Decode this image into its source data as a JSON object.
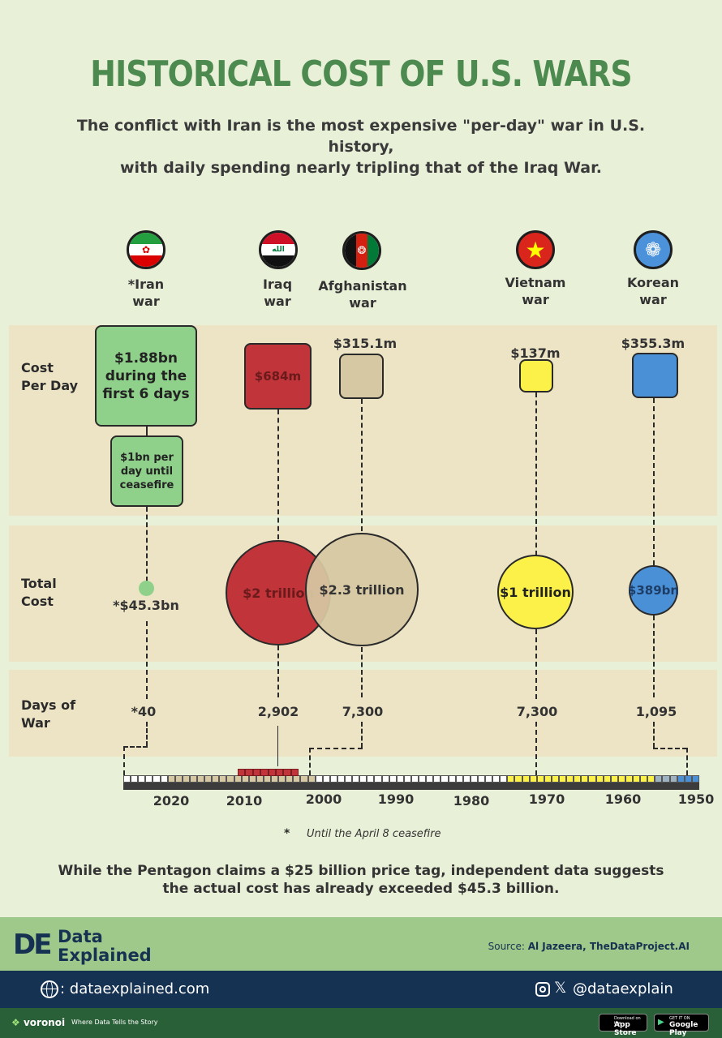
{
  "title": "HISTORICAL COST OF U.S. WARS",
  "subtitle_line1": "The conflict with Iran is the most expensive \"per-day\" war in U.S. history,",
  "subtitle_line2": "with daily spending nearly tripling that of the Iraq War.",
  "row_labels": {
    "cost_per_day_1": "Cost",
    "cost_per_day_2": "Per Day",
    "total_cost_1": "Total",
    "total_cost_2": "Cost",
    "days_1": "Days of",
    "days_2": "War"
  },
  "chart_data": {
    "type": "table",
    "wars": [
      {
        "name1": "*Iran",
        "name2": "war",
        "cost_per_day_label": "$1.88bn during the first 6 days",
        "cost_per_day_bn": 1.88,
        "secondary_cost_label": "$1bn per day until ceasefire",
        "total_cost_label": "*$45.3bn",
        "total_cost_bn": 45.3,
        "days_label": "*40",
        "days": 40,
        "color": "#8fd18a"
      },
      {
        "name1": "Iraq",
        "name2": "war",
        "cost_per_day_label": "$684m",
        "cost_per_day_bn": 0.684,
        "total_cost_label": "$2 trillion",
        "total_cost_bn": 2000,
        "days_label": "2,902",
        "days": 2902,
        "color": "#c0343a"
      },
      {
        "name1": "Afghanistan",
        "name2": "war",
        "cost_per_day_label": "$315.1m",
        "cost_per_day_bn": 0.3151,
        "total_cost_label": "$2.3 trillion",
        "total_cost_bn": 2300,
        "days_label": "7,300",
        "days": 7300,
        "color": "#d6c8a2"
      },
      {
        "name1": "Vietnam",
        "name2": "war",
        "cost_per_day_label": "$137m",
        "cost_per_day_bn": 0.137,
        "total_cost_label": "$1 trillion",
        "total_cost_bn": 1000,
        "days_label": "7,300",
        "days": 7300,
        "color": "#fbf148"
      },
      {
        "name1": "Korean",
        "name2": "war",
        "cost_per_day_label": "$355.3m",
        "cost_per_day_bn": 0.3553,
        "total_cost_label": "$389bn",
        "total_cost_bn": 389,
        "days_label": "1,095",
        "days": 1095,
        "color": "#4a90d6"
      }
    ],
    "timeline_years": [
      "2020",
      "2010",
      "2000",
      "1990",
      "1980",
      "1970",
      "1960",
      "1950"
    ]
  },
  "footnote_star": "*",
  "footnote": "Until the April 8 ceasefire",
  "conclusion_line1": "While the Pentagon claims a $25 billion price tag, independent data suggests",
  "conclusion_line2": "the actual cost has already exceeded $45.3 billion.",
  "brand": {
    "logo": "DE",
    "name1": "Data",
    "name2": "Explained",
    "source_label": "Source:",
    "source": "Al Jazeera, TheDataProject.AI"
  },
  "social": {
    "website": ": dataexplained.com",
    "handle": "@dataexplain"
  },
  "bottom": {
    "voronoi": "voronoi",
    "tagline": "Where Data Tells the Story",
    "appstore_small": "Download on the",
    "appstore": "App Store",
    "googleplay_small": "GET IT ON",
    "googleplay": "Google Play"
  },
  "icons": [
    "globe-icon",
    "instagram-icon",
    "x-icon",
    "apple-icon",
    "google-play-icon"
  ]
}
